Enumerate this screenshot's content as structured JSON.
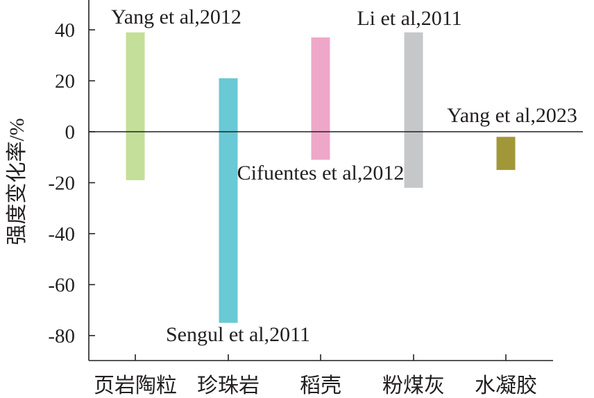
{
  "chart_data": {
    "type": "floating-bar",
    "title": "",
    "xlabel": "",
    "ylabel": "强度变化率/%",
    "ylim": [
      -90,
      50
    ],
    "yticks": [
      40,
      20,
      0,
      -20,
      -40,
      -60,
      -80
    ],
    "ytick_labels": [
      "40",
      "20",
      "0",
      "-20",
      "-40",
      "-60",
      "-80"
    ],
    "grid": false,
    "zero_line": true,
    "categories": [
      "页岩陶粒",
      "珍珠岩",
      "稻壳",
      "粉煤灰",
      "水凝胶"
    ],
    "bars": [
      {
        "category": "页岩陶粒",
        "low": -19,
        "high": 39,
        "color": "#c3df99"
      },
      {
        "category": "珍珠岩",
        "low": -75,
        "high": 21,
        "color": "#69c9d5"
      },
      {
        "category": "稻壳",
        "low": -11,
        "high": 37,
        "color": "#efa7c9"
      },
      {
        "category": "粉煤灰",
        "low": -22,
        "high": 39,
        "color": "#c6c7c9"
      },
      {
        "category": "水凝胶",
        "low": -15,
        "high": -2,
        "color": "#a19738"
      }
    ],
    "annotations": [
      {
        "text": "Yang et al,2012",
        "category": "页岩陶粒",
        "anchor": "top"
      },
      {
        "text": "Sengul et al,2011",
        "category": "珍珠岩",
        "anchor": "bottom"
      },
      {
        "text": "Cifuentes et al,2012",
        "category": "稻壳",
        "anchor": "bottom"
      },
      {
        "text": "Li et al,2011",
        "category": "粉煤灰",
        "anchor": "top"
      },
      {
        "text": "Yang et al,2023",
        "category": "水凝胶",
        "anchor": "top"
      }
    ]
  }
}
